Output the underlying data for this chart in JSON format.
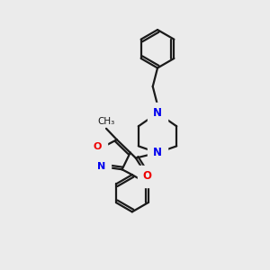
{
  "bg_color": "#ebebeb",
  "bond_color": "#1a1a1a",
  "N_color": "#0000ee",
  "O_color": "#ee0000",
  "line_width": 1.6,
  "font_size": 8.5,
  "figsize": [
    3.0,
    3.0
  ],
  "dpi": 100,
  "xlim": [
    0,
    10
  ],
  "ylim": [
    0,
    10
  ]
}
